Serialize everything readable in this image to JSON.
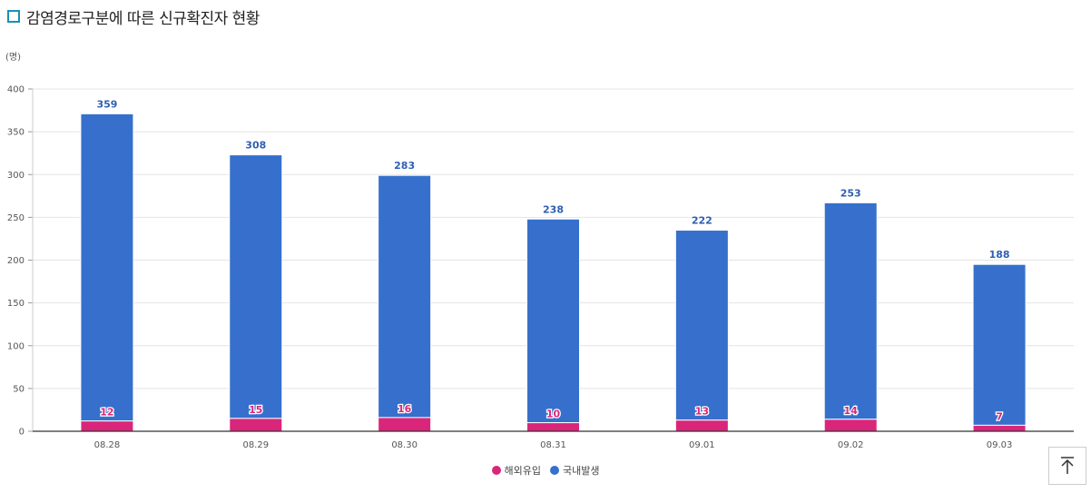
{
  "header": {
    "title": "감염경로구분에 따른 신규확진자 현황"
  },
  "colors": {
    "title_icon": "#1a8fb8",
    "overseas": "#d9267a",
    "domestic": "#3670cc",
    "domestic_label": "#2f5fb3"
  },
  "chart_data": {
    "type": "bar",
    "stacked": true,
    "unit_label": "(명)",
    "categories": [
      "08.28",
      "08.29",
      "08.30",
      "08.31",
      "09.01",
      "09.02",
      "09.03"
    ],
    "series": [
      {
        "name": "해외유입",
        "values": [
          12,
          15,
          16,
          10,
          13,
          14,
          7
        ],
        "color": "#d9267a"
      },
      {
        "name": "국내발생",
        "values": [
          359,
          308,
          283,
          238,
          222,
          253,
          188
        ],
        "color": "#3670cc"
      }
    ],
    "ylim": [
      0,
      400
    ],
    "yticks": [
      0,
      50,
      100,
      150,
      200,
      250,
      300,
      350,
      400
    ],
    "grid": true,
    "legend": "bottom-center"
  },
  "controls": {
    "top_icon": "arrow-up-to-top-icon"
  }
}
